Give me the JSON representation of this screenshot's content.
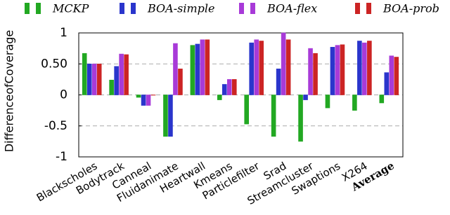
{
  "chart_data": {
    "type": "bar",
    "y_label": "DifferenceofCoverage",
    "categories": [
      "Blackscholes",
      "Bodytrack",
      "Canneal",
      "Fluidanimate",
      "Heartwall",
      "Kmeans",
      "Particlefilter",
      "Srad",
      "Streamcluster",
      "Swaptions",
      "X264",
      "Average"
    ],
    "series": [
      {
        "name": "MCKP",
        "color": "#22a822",
        "values": [
          0.67,
          0.24,
          -0.04,
          -0.67,
          0.8,
          -0.08,
          -0.47,
          -0.67,
          -0.75,
          -0.21,
          -0.25,
          -0.13
        ]
      },
      {
        "name": "BOA-simple",
        "color": "#2a35cc",
        "values": [
          0.5,
          0.46,
          -0.17,
          -0.67,
          0.82,
          0.17,
          0.84,
          0.42,
          -0.08,
          0.77,
          0.87,
          0.36
        ]
      },
      {
        "name": "BOA-flex",
        "color": "#a83ad8",
        "values": [
          0.5,
          0.66,
          -0.17,
          0.83,
          0.89,
          0.25,
          0.89,
          1.0,
          0.75,
          0.8,
          0.84,
          0.63
        ]
      },
      {
        "name": "BOA-prob",
        "color": "#cc2424",
        "values": [
          0.5,
          0.65,
          0,
          0.42,
          0.89,
          0.25,
          0.87,
          0.89,
          0.67,
          0.81,
          0.87,
          0.61
        ]
      }
    ],
    "ylim": [
      -1,
      1
    ],
    "yticks": [
      -1,
      -0.5,
      0,
      {
        "value": 0.5,
        "label": "0.50"
      },
      1
    ],
    "grid": true
  }
}
